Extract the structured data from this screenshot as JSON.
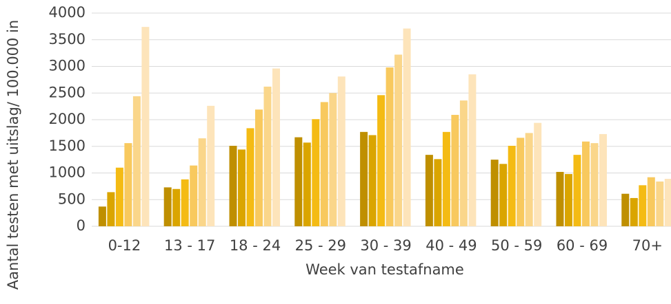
{
  "chart_data": {
    "type": "bar",
    "x_label": "Week van testafname",
    "y_label": "Aantal testen met uitslag/ 100.000 in",
    "categories": [
      "0-12",
      "13 - 17",
      "18 - 24",
      "25 - 29",
      "30 - 39",
      "40 - 49",
      "50 - 59",
      "60 - 69",
      "70+"
    ],
    "series": [
      {
        "color": "#bf8f00",
        "values": [
          370,
          730,
          1510,
          1670,
          1770,
          1340,
          1250,
          1020,
          610
        ]
      },
      {
        "color": "#daa500",
        "values": [
          640,
          700,
          1440,
          1570,
          1710,
          1260,
          1170,
          980,
          530
        ]
      },
      {
        "color": "#f4bb14",
        "values": [
          1100,
          880,
          1840,
          2010,
          2460,
          1770,
          1510,
          1340,
          770
        ]
      },
      {
        "color": "#f8c95e",
        "values": [
          1560,
          1140,
          2190,
          2330,
          2980,
          2090,
          1660,
          1590,
          920
        ]
      },
      {
        "color": "#fad68a",
        "values": [
          2440,
          1650,
          2620,
          2500,
          3220,
          2360,
          1750,
          1560,
          840
        ]
      },
      {
        "color": "#fde4ba",
        "values": [
          3740,
          2260,
          2960,
          2810,
          3710,
          2850,
          1940,
          1730,
          890
        ]
      }
    ],
    "ylim": [
      0,
      4000
    ],
    "yticks": [
      0,
      500,
      1000,
      1500,
      2000,
      2500,
      3000,
      3500,
      4000
    ],
    "grid": true
  }
}
